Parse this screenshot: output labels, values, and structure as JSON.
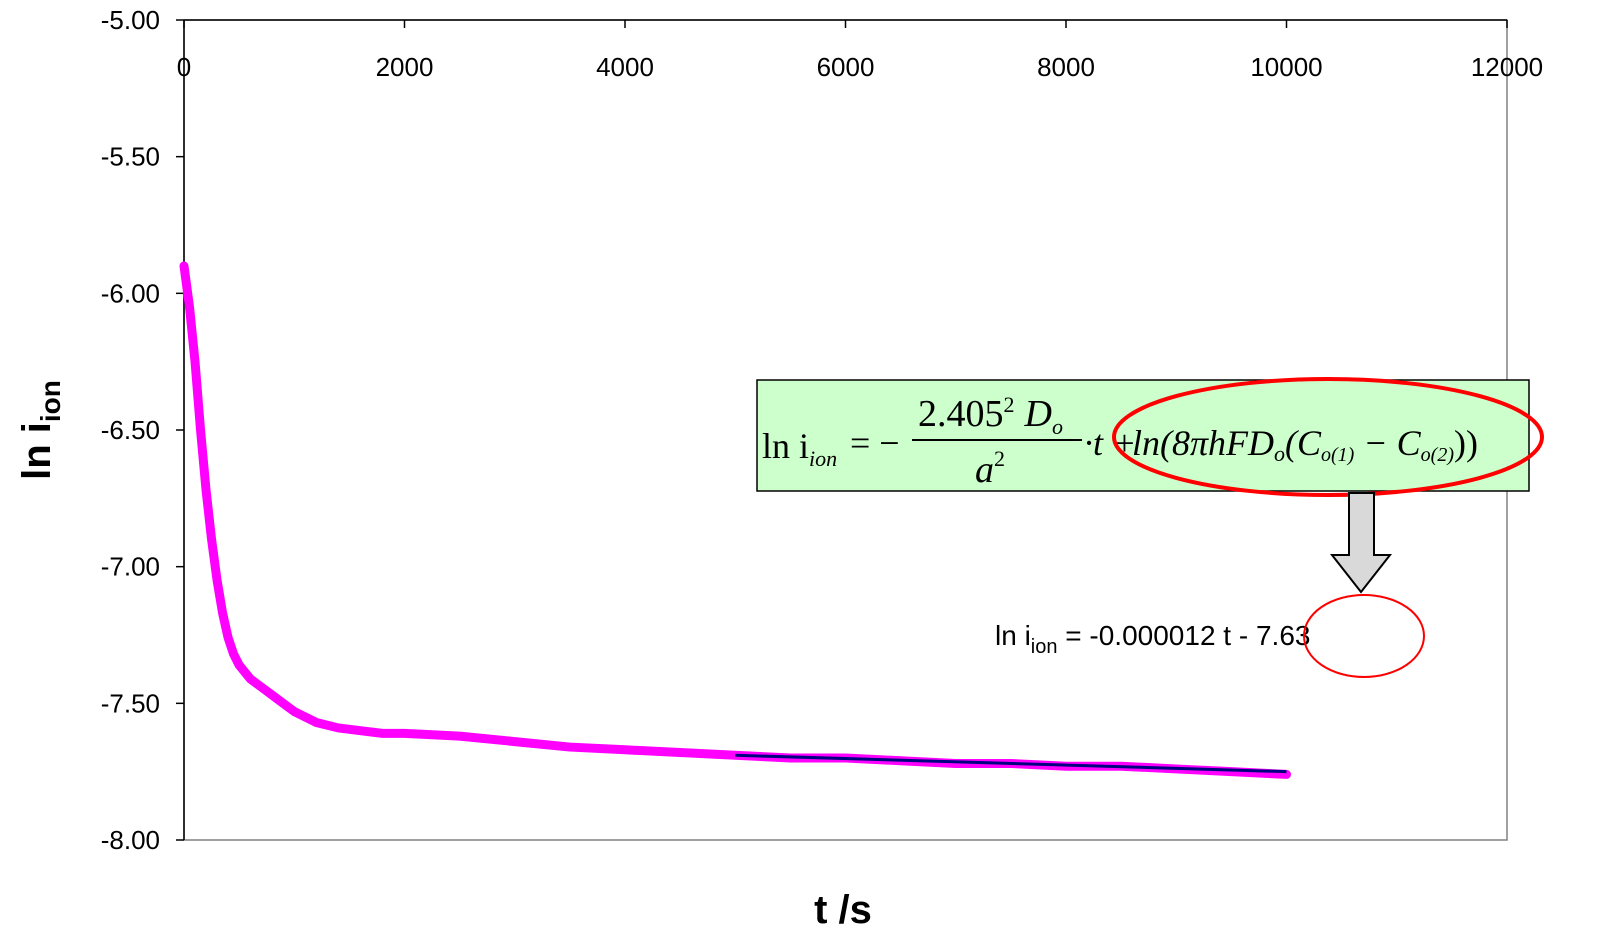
{
  "chart_data": {
    "type": "scatter",
    "title": "",
    "xlabel": "t /s",
    "ylabel_main": "ln i",
    "ylabel_sub": "ion",
    "xlim": [
      0,
      12000
    ],
    "ylim": [
      -8.0,
      -5.0
    ],
    "x_ticks": [
      "0",
      "2000",
      "4000",
      "6000",
      "8000",
      "10000",
      "12000"
    ],
    "y_ticks": [
      "-5.00",
      "-5.50",
      "-6.00",
      "-6.50",
      "-7.00",
      "-7.50",
      "-8.00"
    ],
    "x_axis_position": "top",
    "grid": false,
    "series": [
      {
        "color": "#ff00ff",
        "x": [
          0,
          50,
          100,
          150,
          200,
          250,
          300,
          350,
          400,
          450,
          500,
          600,
          700,
          800,
          900,
          1000,
          1200,
          1400,
          1600,
          1800,
          2000,
          2500,
          3000,
          3500,
          4000,
          4500,
          5000,
          5500,
          6000,
          6500,
          7000,
          7500,
          8000,
          8500,
          9000,
          9500,
          10000
        ],
        "y": [
          -5.9,
          -6.05,
          -6.25,
          -6.5,
          -6.72,
          -6.9,
          -7.05,
          -7.17,
          -7.26,
          -7.32,
          -7.36,
          -7.41,
          -7.44,
          -7.47,
          -7.5,
          -7.53,
          -7.57,
          -7.59,
          -7.6,
          -7.61,
          -7.61,
          -7.62,
          -7.64,
          -7.66,
          -7.67,
          -7.68,
          -7.69,
          -7.7,
          -7.7,
          -7.71,
          -7.72,
          -7.72,
          -7.73,
          -7.73,
          -7.74,
          -7.75,
          -7.76
        ]
      },
      {
        "color": "#000080",
        "type": "line",
        "x": [
          5000,
          10000
        ],
        "y": [
          -7.69,
          -7.75
        ]
      }
    ],
    "annotations": {
      "formula": {
        "lhs": "ln i",
        "lhs_sub": "ion",
        "eq": "= −",
        "num": "2.405",
        "num_sup": "2",
        "num_var": "D",
        "num_var_sub": "o",
        "den": "a",
        "den_sup": "2",
        "times_t": "·t +",
        "rhs_ln": "ln(8πhFD",
        "rhs_o1": "o",
        "rhs_open": "(C",
        "rhs_o2": "o(1)",
        "rhs_minus": " − C",
        "rhs_o3": "o(2)",
        "rhs_close": "))",
        "box_color": "#ccffcc"
      },
      "fit": {
        "prefix": "ln i",
        "sub": "ion",
        "middle": " = -0.000012 t - ",
        "intercept": "7.63"
      },
      "highlight_color": "#ff0000"
    }
  }
}
